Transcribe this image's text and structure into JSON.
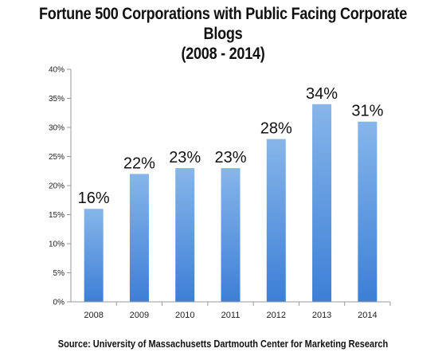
{
  "chart_data": {
    "type": "bar",
    "title_line1": "Fortune 500 Corporations with Public Facing Corporate Blogs",
    "title_line2": "(2008 - 2014)",
    "source": "Source: University of Massachusetts Dartmouth Center for Marketing Research",
    "categories": [
      "2008",
      "2009",
      "2010",
      "2011",
      "2012",
      "2013",
      "2014"
    ],
    "values": [
      16,
      22,
      23,
      23,
      28,
      34,
      31
    ],
    "data_labels": [
      "16%",
      "22%",
      "23%",
      "23%",
      "28%",
      "34%",
      "31%"
    ],
    "y_ticks": [
      "0%",
      "5%",
      "10%",
      "15%",
      "20%",
      "25%",
      "30%",
      "35%",
      "40%"
    ],
    "ylim": [
      0,
      40
    ],
    "grid": false,
    "colors": {
      "bar_top": "#86b6ea",
      "bar_bottom": "#3d7fd6",
      "axis": "#999999"
    }
  }
}
